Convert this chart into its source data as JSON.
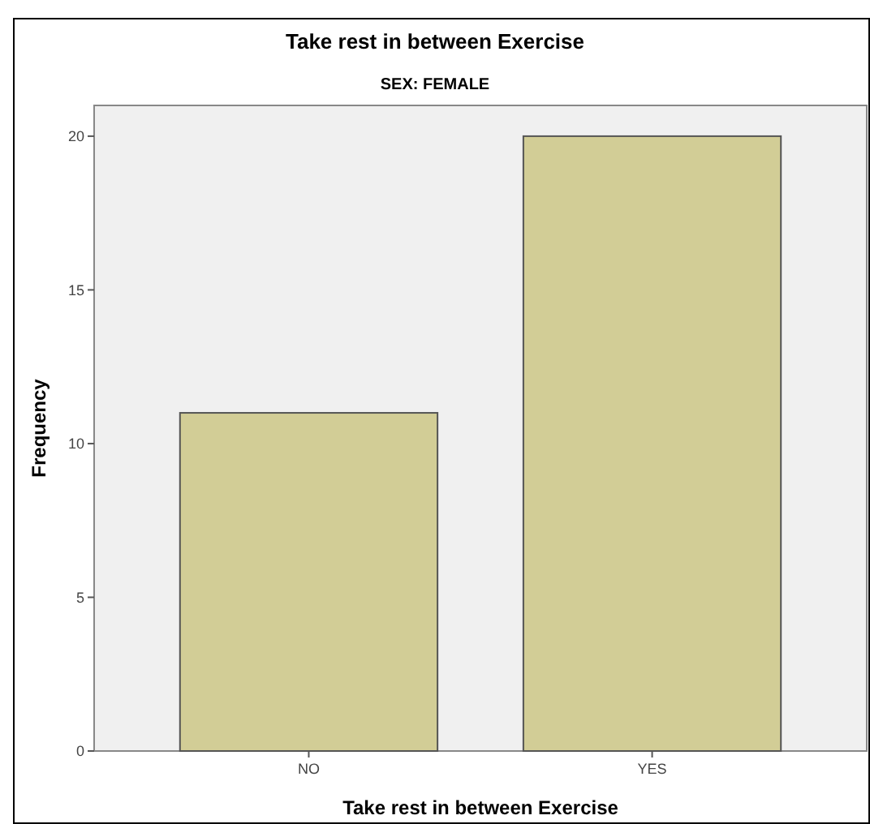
{
  "chart_data": {
    "type": "bar",
    "title": "Take rest in between Exercise",
    "subtitle": "SEX: FEMALE",
    "xlabel": "Take rest in between Exercise",
    "ylabel": "Frequency",
    "categories": [
      "NO",
      "YES"
    ],
    "values": [
      11,
      20
    ],
    "color": "#d2cd96",
    "ylim": [
      0,
      21
    ],
    "yticks": [
      0,
      5,
      10,
      15,
      20
    ],
    "grid": false
  }
}
